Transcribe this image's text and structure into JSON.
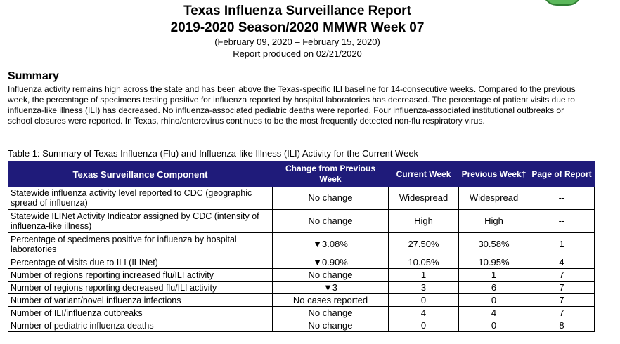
{
  "header": {
    "title_line1": "Texas Influenza Surveillance Report",
    "title_line2": "2019-2020 Season/2020 MMWR Week 07",
    "date_range": "(February 09, 2020 – February 15, 2020)",
    "report_produced": "Report produced on 02/21/2020"
  },
  "summary": {
    "heading": "Summary",
    "text": "Influenza activity remains high across the state and has been above the Texas-specific ILI baseline for 14-consecutive weeks. Compared to the previous week, the percentage of specimens testing positive for influenza reported by hospital laboratories has decreased. The percentage of patient visits due to influenza-like illness (ILI) has decreased. No influenza-associated pediatric deaths were reported. Four influenza-associated institutional outbreaks or school closures were reported.  In Texas, rhino/enterovirus continues to be the most frequently detected non-flu respiratory virus."
  },
  "table": {
    "caption": "Table 1: Summary of Texas Influenza (Flu) and Influenza-like Illness (ILI) Activity for the Current Week",
    "headers": {
      "component": "Texas Surveillance Component",
      "change": "Change from Previous Week",
      "current": "Current Week",
      "previous": "Previous Week†",
      "page": "Page of Report"
    },
    "rows": [
      {
        "component": "Statewide influenza activity level reported to CDC (geographic spread of influenza)",
        "change": "No change",
        "current": "Widespread",
        "previous": "Widespread",
        "page": "--"
      },
      {
        "component": "Statewide ILINet Activity Indicator assigned by CDC (intensity of influenza-like illness)",
        "change": "No change",
        "current": "High",
        "previous": "High",
        "page": "--"
      },
      {
        "component": "Percentage of specimens positive for influenza by hospital laboratories",
        "change": "▼3.08%",
        "current": "27.50%",
        "previous": "30.58%",
        "page": "1"
      },
      {
        "component": "Percentage of visits due to ILI (ILINet)",
        "change": "▼0.90%",
        "current": "10.05%",
        "previous": "10.95%",
        "page": "4"
      },
      {
        "component": "Number of regions reporting increased flu/ILI activity",
        "change": "No change",
        "current": "1",
        "previous": "1",
        "page": "7"
      },
      {
        "component": "Number of regions reporting decreased flu/ILI activity",
        "change": "▼3",
        "current": "3",
        "previous": "6",
        "page": "7"
      },
      {
        "component": "Number of variant/novel influenza infections",
        "change": "No cases reported",
        "current": "0",
        "previous": "0",
        "page": "7"
      },
      {
        "component": "Number of ILI/influenza outbreaks",
        "change": "No change",
        "current": "4",
        "previous": "4",
        "page": "7"
      },
      {
        "component": "Number of pediatric influenza deaths",
        "change": "No change",
        "current": "0",
        "previous": "0",
        "page": "8"
      }
    ]
  }
}
